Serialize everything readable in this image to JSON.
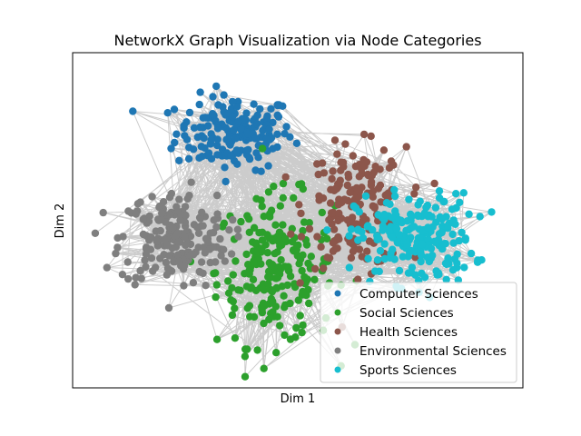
{
  "chart_data": {
    "type": "scatter",
    "subtype": "network-graph",
    "title": "NetworkX Graph Visualization via Node Categories",
    "xlabel": "Dim 1",
    "ylabel": "Dim 2",
    "grid": false,
    "ticks": "none",
    "legend_position": "lower-right",
    "edges": {
      "color": "#000000",
      "opacity": 0.2,
      "density": "dense"
    },
    "series": [
      {
        "name": "Computer Sciences",
        "color": "#1f77b4",
        "node_count": 180,
        "center": [
          -0.28,
          0.62
        ],
        "spread": [
          0.13,
          0.1
        ]
      },
      {
        "name": "Social Sciences",
        "color": "#2ca02c",
        "node_count": 220,
        "center": [
          -0.1,
          -0.12
        ],
        "spread": [
          0.13,
          0.2
        ]
      },
      {
        "name": "Health Sciences",
        "color": "#8c564b",
        "node_count": 180,
        "center": [
          0.26,
          0.22
        ],
        "spread": [
          0.11,
          0.16
        ]
      },
      {
        "name": "Environmental Sciences",
        "color": "#7f7f7f",
        "node_count": 200,
        "center": [
          -0.55,
          0.05
        ],
        "spread": [
          0.12,
          0.13
        ]
      },
      {
        "name": "Sports Sciences",
        "color": "#17becf",
        "node_count": 210,
        "center": [
          0.52,
          0.05
        ],
        "spread": [
          0.13,
          0.12
        ]
      }
    ],
    "xlim": [
      -1.0,
      1.0
    ],
    "ylim": [
      -0.75,
      1.05
    ]
  }
}
